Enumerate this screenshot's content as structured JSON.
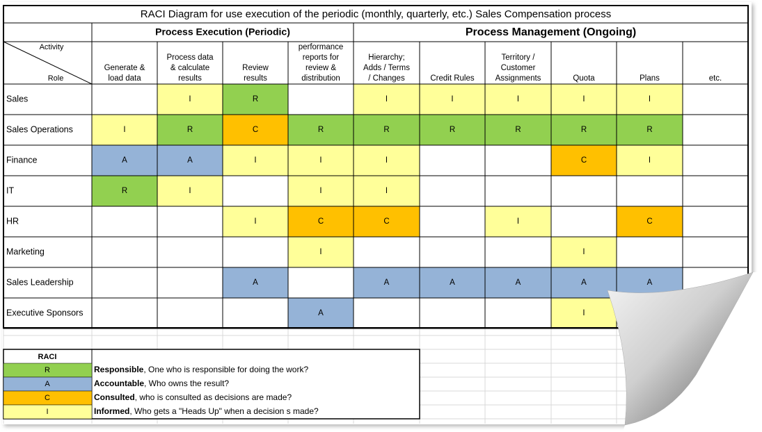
{
  "title": "RACI Diagram for use execution of the periodic (monthly, quarterly, etc.) Sales Compensation process",
  "groups": [
    {
      "label": "Process Execution (Periodic)",
      "span": 4
    },
    {
      "label": "Process Management (Ongoing)",
      "span": 6
    }
  ],
  "corner": {
    "top": "Activity",
    "bottom": "Role"
  },
  "columns": [
    [
      "Generate &",
      "load data"
    ],
    [
      "Process data",
      "& calculate",
      "results"
    ],
    [
      "Review",
      "results"
    ],
    [
      "performance",
      "reports for",
      "review &",
      "distribution"
    ],
    [
      "Hierarchy;",
      "Adds / Terms",
      "/ Changes"
    ],
    [
      "Credit Rules"
    ],
    [
      "Territory /",
      "Customer",
      "Assignments"
    ],
    [
      "Quota"
    ],
    [
      "Plans"
    ],
    [
      "etc."
    ]
  ],
  "rows": [
    {
      "role": "Sales",
      "cells": [
        null,
        "I",
        "R",
        null,
        "I",
        "I",
        "I",
        "I",
        "I",
        null
      ]
    },
    {
      "role": "Sales Operations",
      "cells": [
        "I",
        "R",
        "C",
        "R",
        "R",
        "R",
        "R",
        "R",
        "R",
        null
      ]
    },
    {
      "role": "Finance",
      "cells": [
        "A",
        "A",
        "I",
        "I",
        "I",
        null,
        null,
        "C",
        "I",
        null
      ]
    },
    {
      "role": "IT",
      "cells": [
        "R",
        "I",
        null,
        "I",
        "I",
        null,
        null,
        null,
        null,
        null
      ]
    },
    {
      "role": "HR",
      "cells": [
        null,
        null,
        "I",
        "C",
        "C",
        null,
        "I",
        null,
        "C",
        null
      ]
    },
    {
      "role": "Marketing",
      "cells": [
        null,
        null,
        null,
        "I",
        null,
        null,
        null,
        "I",
        null,
        null
      ]
    },
    {
      "role": "Sales Leadership",
      "cells": [
        null,
        null,
        "A",
        null,
        "A",
        "A",
        "A",
        "A",
        "A",
        null
      ]
    },
    {
      "role": "Executive Sponsors",
      "cells": [
        null,
        null,
        null,
        "A",
        null,
        null,
        null,
        "I",
        null,
        null
      ]
    }
  ],
  "legend": {
    "title": "RACI",
    "items": [
      {
        "code": "R",
        "term": "Responsible",
        "description": ", One who is responsible for doing the work?",
        "color": "#92d050"
      },
      {
        "code": "A",
        "term": "Accountable",
        "description": ", Who owns the result?",
        "color": "#95b3d7"
      },
      {
        "code": "C",
        "term": "Consulted",
        "description": ", who is consulted as decisions are made?",
        "color": "#ffc000"
      },
      {
        "code": "I",
        "term": "Informed",
        "description": ", Who gets a \"Heads Up\" when a decision s made?",
        "color": "#ffff99"
      }
    ]
  }
}
